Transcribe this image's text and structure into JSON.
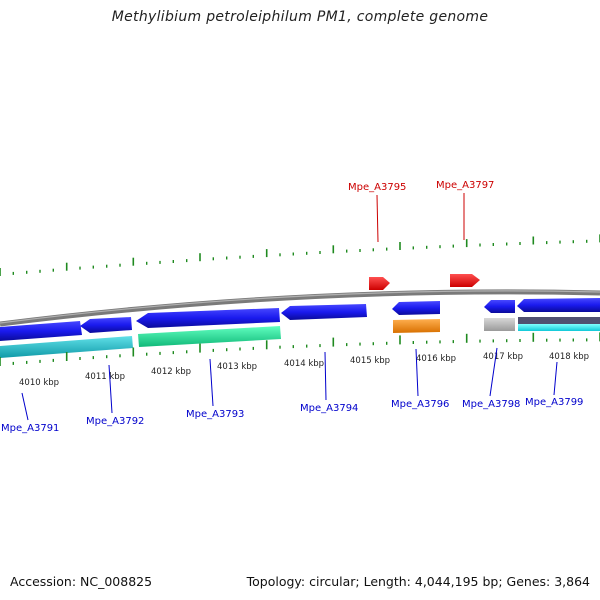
{
  "title": "Methylibium petroleiphilum PM1, complete genome",
  "footer": {
    "accession": "Accession: NC_008825",
    "summary": "Topology: circular; Length: 4,044,195 bp; Genes: 3,864"
  },
  "colors": {
    "backbone": "#8a8a8a",
    "forward_gene": "#ee1111",
    "reverse_gene": "#1a1aee",
    "ticks": "#1f8a1f",
    "ruler_text": "#222222",
    "highlight_label": "#cc0000",
    "gene_label": "#0000cc"
  },
  "ruler_labels": [
    {
      "id": "k4010",
      "text": "4010 kbp"
    },
    {
      "id": "k4011",
      "text": "4011 kbp"
    },
    {
      "id": "k4012",
      "text": "4012 kbp"
    },
    {
      "id": "k4013",
      "text": "4013 kbp"
    },
    {
      "id": "k4014",
      "text": "4014 kbp"
    },
    {
      "id": "k4015",
      "text": "4015 kbp"
    },
    {
      "id": "k4016",
      "text": "4016 kbp"
    },
    {
      "id": "k4017",
      "text": "4017 kbp"
    },
    {
      "id": "k4018",
      "text": "4018 kbp"
    }
  ],
  "genes": [
    {
      "id": "g3791",
      "label": "Mpe_A3791",
      "strand": "reverse",
      "feature_color": "#20b8c8"
    },
    {
      "id": "g3792",
      "label": "Mpe_A3792",
      "strand": "reverse",
      "feature_color": "#20b8c8"
    },
    {
      "id": "g3793",
      "label": "Mpe_A3793",
      "strand": "reverse",
      "feature_color": "#20e8a0"
    },
    {
      "id": "g3794",
      "label": "Mpe_A3794",
      "strand": "reverse",
      "feature_color": ""
    },
    {
      "id": "g3795",
      "label": "Mpe_A3795",
      "strand": "forward",
      "feature_color": ""
    },
    {
      "id": "g3796",
      "label": "Mpe_A3796",
      "strand": "reverse",
      "feature_color": "#f39020"
    },
    {
      "id": "g3797",
      "label": "Mpe_A3797",
      "strand": "forward",
      "feature_color": ""
    },
    {
      "id": "g3798",
      "label": "Mpe_A3798",
      "strand": "reverse",
      "feature_color": "#b8b8b8"
    },
    {
      "id": "g3799",
      "label": "Mpe_A3799",
      "strand": "reverse",
      "feature_color": "#20e8f0"
    }
  ]
}
